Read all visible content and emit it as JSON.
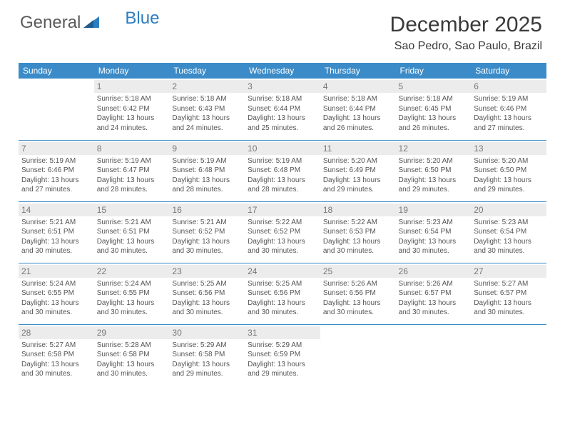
{
  "brand": {
    "part1": "General",
    "part2": "Blue"
  },
  "title": "December 2025",
  "location": "Sao Pedro, Sao Paulo, Brazil",
  "colors": {
    "header_bg": "#3b8bc8",
    "header_text": "#ffffff",
    "rule": "#3b8bc8",
    "daybg": "#ececec",
    "body_text": "#555555",
    "brand_gray": "#5a5a5a",
    "brand_blue": "#2d7dc0"
  },
  "weekdays": [
    "Sunday",
    "Monday",
    "Tuesday",
    "Wednesday",
    "Thursday",
    "Friday",
    "Saturday"
  ],
  "layout": {
    "start_offset": 1,
    "days_in_month": 31
  },
  "days": {
    "1": {
      "sunrise": "5:18 AM",
      "sunset": "6:42 PM",
      "daylight": "13 hours and 24 minutes."
    },
    "2": {
      "sunrise": "5:18 AM",
      "sunset": "6:43 PM",
      "daylight": "13 hours and 24 minutes."
    },
    "3": {
      "sunrise": "5:18 AM",
      "sunset": "6:44 PM",
      "daylight": "13 hours and 25 minutes."
    },
    "4": {
      "sunrise": "5:18 AM",
      "sunset": "6:44 PM",
      "daylight": "13 hours and 26 minutes."
    },
    "5": {
      "sunrise": "5:18 AM",
      "sunset": "6:45 PM",
      "daylight": "13 hours and 26 minutes."
    },
    "6": {
      "sunrise": "5:19 AM",
      "sunset": "6:46 PM",
      "daylight": "13 hours and 27 minutes."
    },
    "7": {
      "sunrise": "5:19 AM",
      "sunset": "6:46 PM",
      "daylight": "13 hours and 27 minutes."
    },
    "8": {
      "sunrise": "5:19 AM",
      "sunset": "6:47 PM",
      "daylight": "13 hours and 28 minutes."
    },
    "9": {
      "sunrise": "5:19 AM",
      "sunset": "6:48 PM",
      "daylight": "13 hours and 28 minutes."
    },
    "10": {
      "sunrise": "5:19 AM",
      "sunset": "6:48 PM",
      "daylight": "13 hours and 28 minutes."
    },
    "11": {
      "sunrise": "5:20 AM",
      "sunset": "6:49 PM",
      "daylight": "13 hours and 29 minutes."
    },
    "12": {
      "sunrise": "5:20 AM",
      "sunset": "6:50 PM",
      "daylight": "13 hours and 29 minutes."
    },
    "13": {
      "sunrise": "5:20 AM",
      "sunset": "6:50 PM",
      "daylight": "13 hours and 29 minutes."
    },
    "14": {
      "sunrise": "5:21 AM",
      "sunset": "6:51 PM",
      "daylight": "13 hours and 30 minutes."
    },
    "15": {
      "sunrise": "5:21 AM",
      "sunset": "6:51 PM",
      "daylight": "13 hours and 30 minutes."
    },
    "16": {
      "sunrise": "5:21 AM",
      "sunset": "6:52 PM",
      "daylight": "13 hours and 30 minutes."
    },
    "17": {
      "sunrise": "5:22 AM",
      "sunset": "6:52 PM",
      "daylight": "13 hours and 30 minutes."
    },
    "18": {
      "sunrise": "5:22 AM",
      "sunset": "6:53 PM",
      "daylight": "13 hours and 30 minutes."
    },
    "19": {
      "sunrise": "5:23 AM",
      "sunset": "6:54 PM",
      "daylight": "13 hours and 30 minutes."
    },
    "20": {
      "sunrise": "5:23 AM",
      "sunset": "6:54 PM",
      "daylight": "13 hours and 30 minutes."
    },
    "21": {
      "sunrise": "5:24 AM",
      "sunset": "6:55 PM",
      "daylight": "13 hours and 30 minutes."
    },
    "22": {
      "sunrise": "5:24 AM",
      "sunset": "6:55 PM",
      "daylight": "13 hours and 30 minutes."
    },
    "23": {
      "sunrise": "5:25 AM",
      "sunset": "6:56 PM",
      "daylight": "13 hours and 30 minutes."
    },
    "24": {
      "sunrise": "5:25 AM",
      "sunset": "6:56 PM",
      "daylight": "13 hours and 30 minutes."
    },
    "25": {
      "sunrise": "5:26 AM",
      "sunset": "6:56 PM",
      "daylight": "13 hours and 30 minutes."
    },
    "26": {
      "sunrise": "5:26 AM",
      "sunset": "6:57 PM",
      "daylight": "13 hours and 30 minutes."
    },
    "27": {
      "sunrise": "5:27 AM",
      "sunset": "6:57 PM",
      "daylight": "13 hours and 30 minutes."
    },
    "28": {
      "sunrise": "5:27 AM",
      "sunset": "6:58 PM",
      "daylight": "13 hours and 30 minutes."
    },
    "29": {
      "sunrise": "5:28 AM",
      "sunset": "6:58 PM",
      "daylight": "13 hours and 30 minutes."
    },
    "30": {
      "sunrise": "5:29 AM",
      "sunset": "6:58 PM",
      "daylight": "13 hours and 29 minutes."
    },
    "31": {
      "sunrise": "5:29 AM",
      "sunset": "6:59 PM",
      "daylight": "13 hours and 29 minutes."
    }
  },
  "labels": {
    "sunrise": "Sunrise: ",
    "sunset": "Sunset: ",
    "daylight": "Daylight: "
  }
}
